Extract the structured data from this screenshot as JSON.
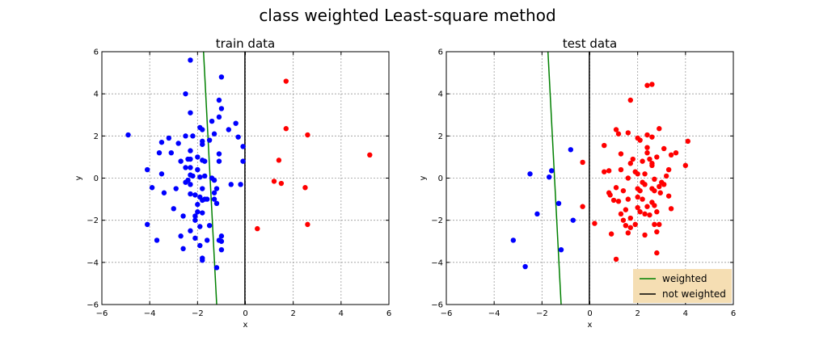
{
  "figure": {
    "title": "class weighted Least-square method"
  },
  "chart_data": [
    {
      "type": "scatter",
      "title": "train data",
      "xlabel": "x",
      "ylabel": "y",
      "xlim": [
        -6,
        6
      ],
      "ylim": [
        -6,
        6
      ],
      "xticks": [
        "−6",
        "−4",
        "−2",
        "0",
        "2",
        "4",
        "6"
      ],
      "yticks": [
        "−6",
        "−4",
        "−2",
        "0",
        "2",
        "4",
        "6"
      ],
      "grid": true,
      "legend": null,
      "series": [
        {
          "color": "#0000ff",
          "points": [
            [
              -2.3,
              5.6
            ],
            [
              -1.0,
              4.8
            ],
            [
              -2.5,
              4.0
            ],
            [
              -1.1,
              3.7
            ],
            [
              -1.0,
              3.3
            ],
            [
              -2.3,
              3.1
            ],
            [
              -1.1,
              2.9
            ],
            [
              -1.4,
              2.7
            ],
            [
              -0.4,
              2.6
            ],
            [
              -1.9,
              2.4
            ],
            [
              -1.8,
              2.3
            ],
            [
              -0.7,
              2.3
            ],
            [
              -2.5,
              2.0
            ],
            [
              -2.2,
              2.0
            ],
            [
              -4.9,
              2.05
            ],
            [
              -1.3,
              2.1
            ],
            [
              -3.2,
              1.9
            ],
            [
              -0.3,
              1.95
            ],
            [
              -1.8,
              1.75
            ],
            [
              -3.5,
              1.7
            ],
            [
              -2.8,
              1.65
            ],
            [
              -1.5,
              1.8
            ],
            [
              -1.8,
              1.6
            ],
            [
              -0.1,
              1.5
            ],
            [
              -3.6,
              1.2
            ],
            [
              -3.1,
              1.2
            ],
            [
              -2.3,
              1.3
            ],
            [
              -2.0,
              1.0
            ],
            [
              -1.1,
              1.15
            ],
            [
              -2.7,
              0.8
            ],
            [
              -2.4,
              0.9
            ],
            [
              -2.3,
              0.9
            ],
            [
              -1.8,
              0.85
            ],
            [
              -1.7,
              0.8
            ],
            [
              -1.1,
              0.8
            ],
            [
              -0.1,
              0.8
            ],
            [
              -2.5,
              0.5
            ],
            [
              -2.3,
              0.5
            ],
            [
              -2.0,
              0.4
            ],
            [
              -3.5,
              0.2
            ],
            [
              -4.1,
              0.4
            ],
            [
              -2.3,
              0.15
            ],
            [
              -2.2,
              0.1
            ],
            [
              -1.7,
              0.1
            ],
            [
              -1.9,
              0.05
            ],
            [
              -1.4,
              0.0
            ],
            [
              -1.3,
              -0.1
            ],
            [
              -2.4,
              -0.1
            ],
            [
              -2.5,
              -0.2
            ],
            [
              -2.3,
              -0.3
            ],
            [
              -0.6,
              -0.3
            ],
            [
              -0.2,
              -0.3
            ],
            [
              -1.2,
              -0.5
            ],
            [
              -3.9,
              -0.45
            ],
            [
              -2.9,
              -0.5
            ],
            [
              -1.8,
              -0.5
            ],
            [
              -1.3,
              -0.7
            ],
            [
              -3.4,
              -0.7
            ],
            [
              -2.3,
              -0.75
            ],
            [
              -2.1,
              -0.8
            ],
            [
              -1.9,
              -0.9
            ],
            [
              -1.7,
              -1.0
            ],
            [
              -1.6,
              -1.0
            ],
            [
              -1.8,
              -1.05
            ],
            [
              -1.3,
              -1.0
            ],
            [
              -1.2,
              -1.2
            ],
            [
              -2.0,
              -1.25
            ],
            [
              -3.0,
              -1.45
            ],
            [
              -2.0,
              -1.6
            ],
            [
              -1.8,
              -1.65
            ],
            [
              -2.1,
              -1.8
            ],
            [
              -2.6,
              -1.8
            ],
            [
              -2.1,
              -2.0
            ],
            [
              -4.1,
              -2.2
            ],
            [
              -1.5,
              -2.25
            ],
            [
              -1.9,
              -2.3
            ],
            [
              -2.3,
              -2.5
            ],
            [
              -2.7,
              -2.75
            ],
            [
              -1.0,
              -2.75
            ],
            [
              -3.7,
              -2.95
            ],
            [
              -2.1,
              -2.85
            ],
            [
              -1.6,
              -2.95
            ],
            [
              -1.1,
              -2.95
            ],
            [
              -1.0,
              -3.0
            ],
            [
              -1.9,
              -3.2
            ],
            [
              -2.6,
              -3.35
            ],
            [
              -1.0,
              -3.4
            ],
            [
              -1.8,
              -3.8
            ],
            [
              -1.8,
              -3.9
            ],
            [
              -1.2,
              -4.25
            ]
          ]
        },
        {
          "color": "#ff0000",
          "points": [
            [
              1.7,
              4.6
            ],
            [
              1.7,
              2.35
            ],
            [
              2.6,
              2.05
            ],
            [
              5.2,
              1.1
            ],
            [
              1.4,
              0.85
            ],
            [
              1.2,
              -0.15
            ],
            [
              1.5,
              -0.25
            ],
            [
              2.5,
              -0.45
            ],
            [
              2.6,
              -2.2
            ],
            [
              0.5,
              -2.4
            ]
          ]
        }
      ],
      "lines": [
        {
          "name": "weighted",
          "color": "#008000",
          "x": [
            -1.75,
            -1.2
          ],
          "y": [
            6,
            -6
          ]
        },
        {
          "name": "not weighted",
          "color": "#000000",
          "x": [
            -0.02,
            -0.02
          ],
          "y": [
            6,
            -6
          ]
        }
      ]
    },
    {
      "type": "scatter",
      "title": "test data",
      "xlabel": "x",
      "ylabel": "y",
      "xlim": [
        -6,
        6
      ],
      "ylim": [
        -6,
        6
      ],
      "xticks": [
        "−6",
        "−4",
        "−2",
        "0",
        "2",
        "4",
        "6"
      ],
      "yticks": [
        "−6",
        "−4",
        "−2",
        "0",
        "2",
        "4",
        "6"
      ],
      "grid": true,
      "legend": {
        "position": "lower-right",
        "entries": [
          "weighted",
          "not weighted"
        ]
      },
      "series": [
        {
          "color": "#0000ff",
          "points": [
            [
              -0.8,
              1.35
            ],
            [
              -1.6,
              0.35
            ],
            [
              -2.5,
              0.2
            ],
            [
              -1.7,
              0.05
            ],
            [
              -1.3,
              -1.2
            ],
            [
              -2.2,
              -1.7
            ],
            [
              -0.7,
              -2.0
            ],
            [
              -3.2,
              -2.95
            ],
            [
              -1.2,
              -3.4
            ],
            [
              -2.7,
              -4.2
            ]
          ]
        },
        {
          "color": "#ff0000",
          "points": [
            [
              2.4,
              4.4
            ],
            [
              2.6,
              4.45
            ],
            [
              1.7,
              3.7
            ],
            [
              1.1,
              2.3
            ],
            [
              1.2,
              2.1
            ],
            [
              1.6,
              2.15
            ],
            [
              2.4,
              2.05
            ],
            [
              2.9,
              2.35
            ],
            [
              2.0,
              1.9
            ],
            [
              2.6,
              1.95
            ],
            [
              3.1,
              1.4
            ],
            [
              2.1,
              1.8
            ],
            [
              2.4,
              1.45
            ],
            [
              0.6,
              1.55
            ],
            [
              2.4,
              1.2
            ],
            [
              1.3,
              1.15
            ],
            [
              3.4,
              1.1
            ],
            [
              3.6,
              1.2
            ],
            [
              4.1,
              1.75
            ],
            [
              2.8,
              1.0
            ],
            [
              2.5,
              0.9
            ],
            [
              2.2,
              0.8
            ],
            [
              1.7,
              0.7
            ],
            [
              2.6,
              0.7
            ],
            [
              2.6,
              0.6
            ],
            [
              0.6,
              0.3
            ],
            [
              0.8,
              0.35
            ],
            [
              1.3,
              0.4
            ],
            [
              1.9,
              0.3
            ],
            [
              2.3,
              0.2
            ],
            [
              3.3,
              0.4
            ],
            [
              4.0,
              0.6
            ],
            [
              3.2,
              0.1
            ],
            [
              2.0,
              0.2
            ],
            [
              1.6,
              0.0
            ],
            [
              2.7,
              -0.05
            ],
            [
              2.2,
              -0.2
            ],
            [
              2.3,
              -0.3
            ],
            [
              3.0,
              -0.2
            ],
            [
              3.1,
              -0.3
            ],
            [
              1.1,
              -0.45
            ],
            [
              2.9,
              -0.4
            ],
            [
              2.6,
              -0.5
            ],
            [
              1.4,
              -0.6
            ],
            [
              0.8,
              -0.7
            ],
            [
              0.85,
              -0.8
            ],
            [
              2.1,
              -0.6
            ],
            [
              2.7,
              -0.6
            ],
            [
              2.95,
              -0.7
            ],
            [
              3.3,
              -0.85
            ],
            [
              2.0,
              -0.9
            ],
            [
              1.6,
              -1.0
            ],
            [
              1.0,
              -1.05
            ],
            [
              1.2,
              -1.1
            ],
            [
              2.2,
              -1.0
            ],
            [
              2.6,
              -1.15
            ],
            [
              2.7,
              -1.3
            ],
            [
              3.4,
              -1.45
            ],
            [
              2.4,
              -1.35
            ],
            [
              2.0,
              -1.4
            ],
            [
              1.5,
              -1.5
            ],
            [
              1.3,
              -1.7
            ],
            [
              2.1,
              -1.6
            ],
            [
              2.3,
              -1.7
            ],
            [
              2.8,
              -1.6
            ],
            [
              1.7,
              -1.9
            ],
            [
              1.4,
              -2.0
            ],
            [
              2.5,
              -1.75
            ],
            [
              1.9,
              -2.2
            ],
            [
              1.5,
              -2.25
            ],
            [
              2.7,
              -2.2
            ],
            [
              2.9,
              -2.2
            ],
            [
              1.7,
              -2.35
            ],
            [
              1.6,
              -2.6
            ],
            [
              2.3,
              -2.7
            ],
            [
              2.8,
              -2.55
            ],
            [
              -0.3,
              0.75
            ],
            [
              -0.3,
              -1.35
            ],
            [
              0.2,
              -2.15
            ],
            [
              0.9,
              -2.65
            ],
            [
              1.1,
              -3.85
            ],
            [
              2.8,
              -3.55
            ],
            [
              2.0,
              -0.5
            ],
            [
              1.8,
              0.9
            ]
          ]
        }
      ],
      "lines": [
        {
          "name": "weighted",
          "color": "#008000",
          "x": [
            -1.75,
            -1.2
          ],
          "y": [
            6,
            -6
          ]
        },
        {
          "name": "not weighted",
          "color": "#000000",
          "x": [
            -0.02,
            -0.02
          ],
          "y": [
            6,
            -6
          ]
        }
      ],
      "legend_style": {
        "background": "#f5deb3"
      }
    }
  ]
}
